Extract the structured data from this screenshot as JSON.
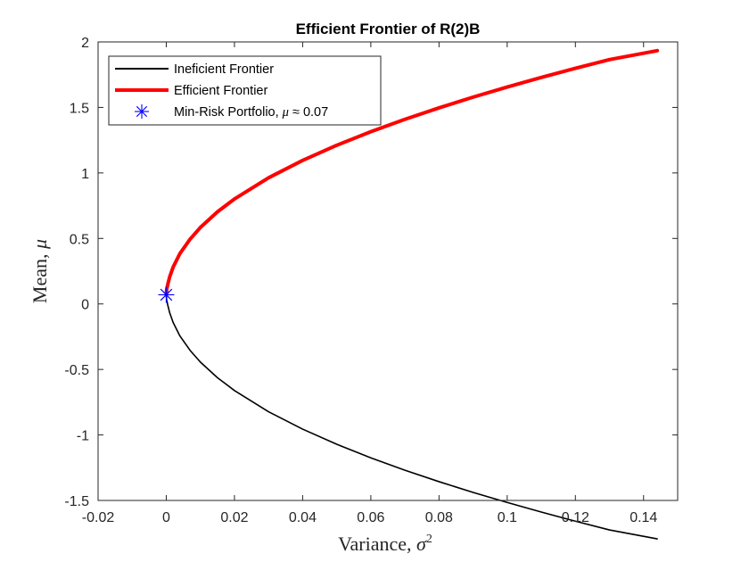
{
  "chart_data": {
    "type": "line",
    "title": "Efficient Frontier of R(2)B",
    "xlabel_text": "Variance, ",
    "xlabel_symbol": "σ",
    "xlabel_sup": "2",
    "ylabel_text": "Mean, ",
    "ylabel_symbol": "μ",
    "xlim": [
      -0.02,
      0.15
    ],
    "ylim": [
      -1.5,
      2
    ],
    "xticks": [
      -0.02,
      0,
      0.02,
      0.04,
      0.06,
      0.08,
      0.1,
      0.12,
      0.14
    ],
    "xtick_labels": [
      "-0.02",
      "0",
      "0.02",
      "0.04",
      "0.06",
      "0.08",
      "0.1",
      "0.12",
      "0.14"
    ],
    "yticks": [
      -1.5,
      -1,
      -0.5,
      0,
      0.5,
      1,
      1.5,
      2
    ],
    "ytick_labels": [
      "-1.5",
      "-1",
      "-0.5",
      "0",
      "0.5",
      "1",
      "1.5",
      "2"
    ],
    "grid": false,
    "legend_position": "top-left",
    "series": [
      {
        "name": "Ineficient Frontier",
        "color": "#000000",
        "x": [
          0,
          0.0001,
          0.0004,
          0.001,
          0.002,
          0.004,
          0.007,
          0.01,
          0.015,
          0.02,
          0.03,
          0.04,
          0.05,
          0.06,
          0.07,
          0.08,
          0.09,
          0.1,
          0.11,
          0.12,
          0.13,
          0.144
        ],
        "y": [
          0.07,
          0.0327,
          -0.0047,
          -0.0667,
          -0.1404,
          -0.2443,
          -0.355,
          -0.4436,
          -0.5628,
          -0.6611,
          -0.8227,
          -0.9557,
          -1.0712,
          -1.1747,
          -1.2691,
          -1.3566,
          -1.4385,
          -1.5156,
          -1.5888,
          -1.6585,
          -1.7251,
          -1.7933
        ]
      },
      {
        "name": "Efficient Frontier",
        "color": "#ff0000",
        "x": [
          0,
          0.0001,
          0.0004,
          0.001,
          0.002,
          0.004,
          0.007,
          0.01,
          0.015,
          0.02,
          0.03,
          0.04,
          0.05,
          0.06,
          0.07,
          0.08,
          0.09,
          0.1,
          0.11,
          0.12,
          0.13,
          0.144
        ],
        "y": [
          0.07,
          0.1073,
          0.1447,
          0.2067,
          0.2804,
          0.3843,
          0.495,
          0.5836,
          0.7028,
          0.8011,
          0.9627,
          1.0957,
          1.2112,
          1.3147,
          1.4091,
          1.4966,
          1.5785,
          1.6556,
          1.7288,
          1.7985,
          1.8651,
          1.9333
        ]
      }
    ],
    "marker": {
      "name_text": "Min-Risk Portfolio, ",
      "name_symbol": "μ",
      "name_approx": " ≈ 0.07",
      "x": 0,
      "y": 0.07,
      "color": "#0000ff"
    },
    "colors": {
      "axis": "#262626",
      "background": "#ffffff"
    }
  }
}
